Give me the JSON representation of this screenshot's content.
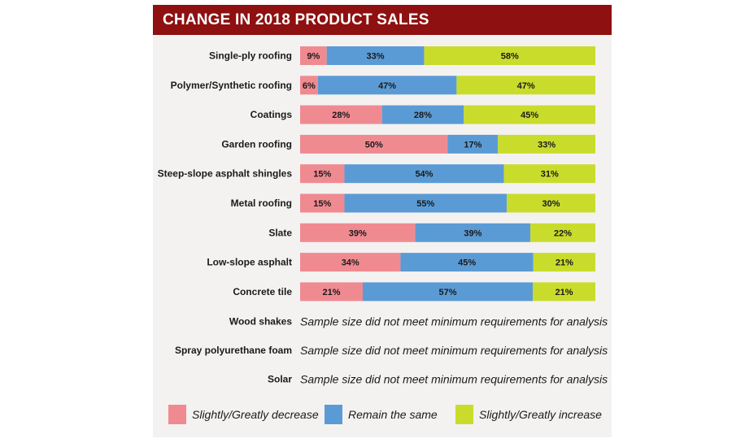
{
  "chart_data": {
    "type": "bar",
    "orientation": "horizontal",
    "stacked": true,
    "title": "CHANGE IN 2018 PRODUCT SALES",
    "categories": [
      "Single-ply roofing",
      "Polymer/Synthetic roofing",
      "Coatings",
      "Garden roofing",
      "Steep-slope asphalt shingles",
      "Metal roofing",
      "Slate",
      "Low-slope asphalt",
      "Concrete tile"
    ],
    "series": [
      {
        "name": "Slightly/Greatly decrease",
        "color": "#f08a91",
        "values": [
          9,
          6,
          28,
          50,
          15,
          15,
          39,
          34,
          21
        ]
      },
      {
        "name": "Remain the same",
        "color": "#5b9bd5",
        "values": [
          33,
          47,
          28,
          17,
          54,
          55,
          39,
          45,
          57
        ]
      },
      {
        "name": "Slightly/Greatly increase",
        "color": "#c9dc2c",
        "values": [
          58,
          47,
          45,
          33,
          31,
          30,
          22,
          21,
          21
        ]
      }
    ],
    "value_suffix": "%",
    "excluded": [
      {
        "category": "Wood shakes",
        "note": "Sample size did not meet minimum requirements for analysis"
      },
      {
        "category": "Spray polyurethane foam",
        "note": "Sample size did not meet minimum requirements for analysis"
      },
      {
        "category": "Solar",
        "note": "Sample size did not meet minimum requirements for analysis"
      }
    ],
    "legend_position": "bottom"
  }
}
